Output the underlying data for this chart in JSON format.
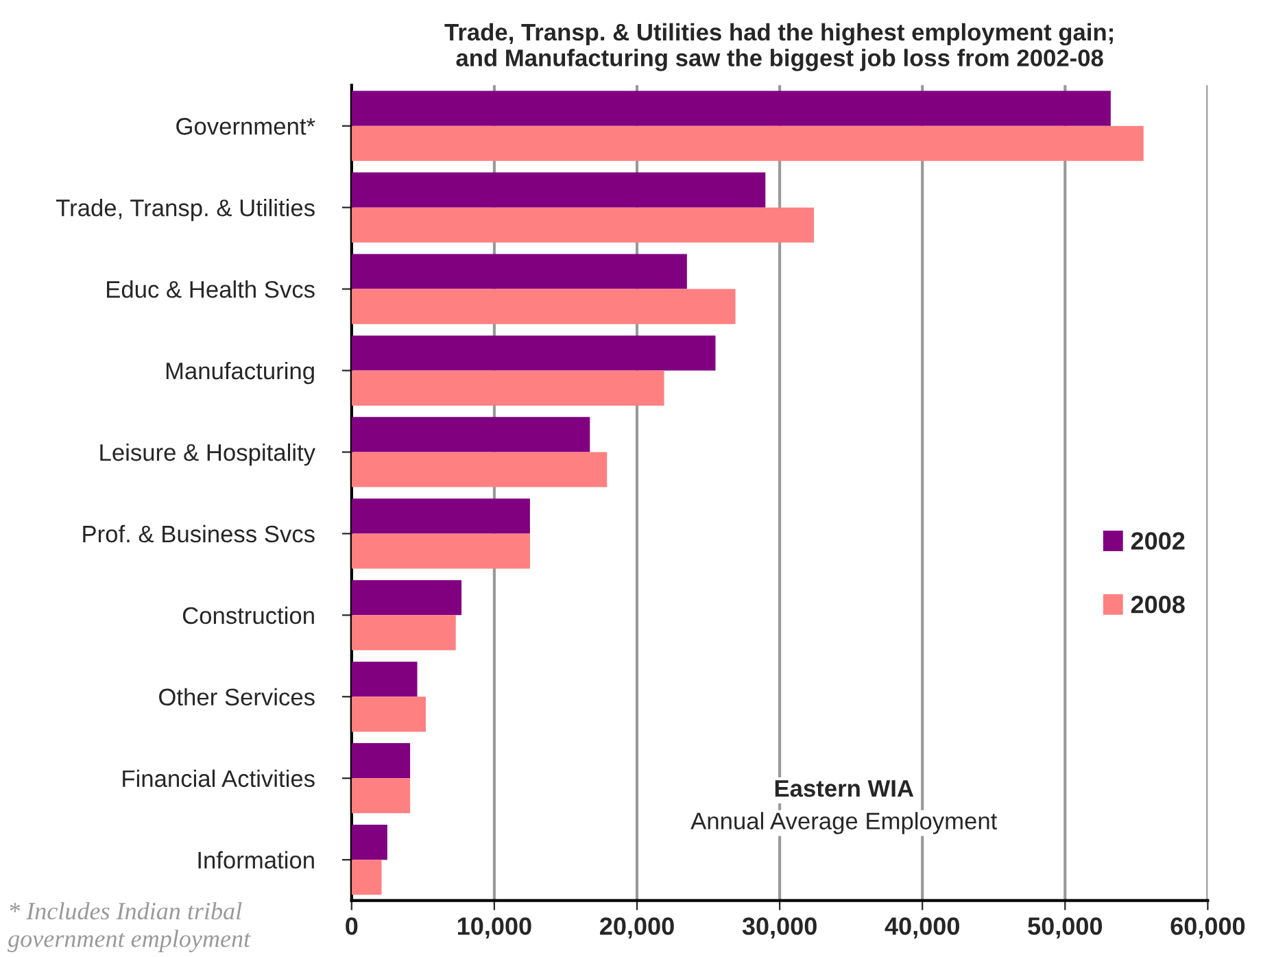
{
  "chart_data": {
    "type": "bar",
    "orientation": "horizontal",
    "title": "Trade, Transp. & Utilities had the highest employment gain;\nand Manufacturing saw the biggest job loss from 2002-08",
    "categories": [
      "Government*",
      "Trade, Transp. & Utilities",
      "Educ & Health Svcs",
      "Manufacturing",
      "Leisure & Hospitality",
      "Prof. & Business Svcs",
      "Construction",
      "Other Services",
      "Financial Activities",
      "Information"
    ],
    "series": [
      {
        "name": "2002",
        "color": "#800080",
        "values": [
          53200,
          29000,
          23500,
          25500,
          16700,
          12500,
          7700,
          4600,
          4100,
          2500
        ]
      },
      {
        "name": "2008",
        "color": "#ff8080",
        "values": [
          55500,
          32400,
          26900,
          21900,
          17900,
          12500,
          7300,
          5200,
          4100,
          2100
        ]
      }
    ],
    "xlim": [
      0,
      60000
    ],
    "xticks": [
      {
        "value": 0,
        "label": "0"
      },
      {
        "value": 10000,
        "label": "10,000"
      },
      {
        "value": 20000,
        "label": "20,000"
      },
      {
        "value": 30000,
        "label": "30,000"
      },
      {
        "value": 40000,
        "label": "40,000"
      },
      {
        "value": 50000,
        "label": "50,000"
      },
      {
        "value": 60000,
        "label": "60,000"
      }
    ],
    "grid": "x",
    "legend": "right",
    "annotations": [
      "Eastern WIA",
      "Annual Average Employment",
      "* Includes Indian tribal\ngovernment employment"
    ]
  }
}
